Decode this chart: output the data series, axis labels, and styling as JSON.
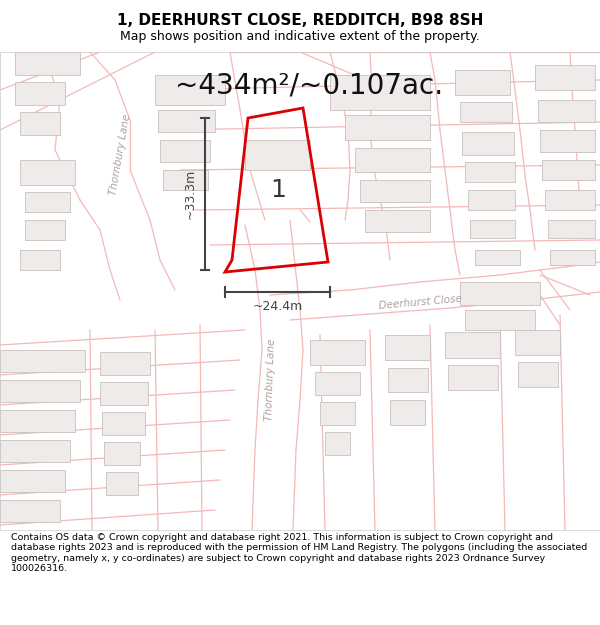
{
  "title": "1, DEERHURST CLOSE, REDDITCH, B98 8SH",
  "subtitle": "Map shows position and indicative extent of the property.",
  "area_text": "~434m²/~0.107ac.",
  "dim_width": "~24.4m",
  "dim_height": "~33.3m",
  "plot_label": "1",
  "footer": "Contains OS data © Crown copyright and database right 2021. This information is subject to Crown copyright and database rights 2023 and is reproduced with the permission of HM Land Registry. The polygons (including the associated geometry, namely x, y co-ordinates) are subject to Crown copyright and database rights 2023 Ordnance Survey 100026316.",
  "bg_color": "#ffffff",
  "map_bg": "#ffffff",
  "road_color": "#f5b8b8",
  "road_lw": 0.9,
  "building_color": "#eeebea",
  "building_edge": "#c8c0bc",
  "building_lw": 0.6,
  "plot_color": "#dd0000",
  "plot_fill": "none",
  "plot_lw": 2.0,
  "dim_color": "#444444",
  "road_label_color": "#b0a0a0",
  "title_color": "#000000",
  "footer_color": "#000000",
  "title_fontsize": 11,
  "subtitle_fontsize": 9,
  "area_fontsize": 20,
  "label_fontsize": 18,
  "dim_fontsize": 9,
  "road_label_fontsize": 7.5,
  "footer_fontsize": 6.8
}
